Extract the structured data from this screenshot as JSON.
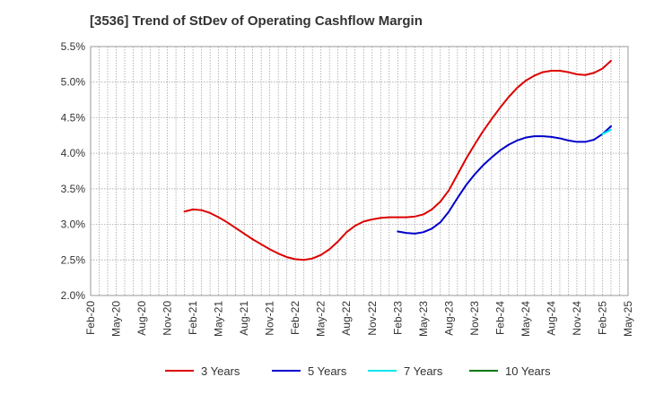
{
  "title": "[3536]  Trend of StDev of Operating Cashflow Margin",
  "chart_data": {
    "type": "line",
    "title": "[3536]  Trend of StDev of Operating Cashflow Margin",
    "xlabel": "",
    "ylabel": "",
    "x_ticks": [
      "Feb-20",
      "May-20",
      "Aug-20",
      "Nov-20",
      "Feb-21",
      "May-21",
      "Aug-21",
      "Nov-21",
      "Feb-22",
      "May-22",
      "Aug-22",
      "Nov-22",
      "Feb-23",
      "May-23",
      "Aug-23",
      "Nov-23",
      "Feb-24",
      "May-24",
      "Aug-24",
      "Nov-24",
      "Feb-25",
      "May-25"
    ],
    "y_ticks": [
      "2.0%",
      "2.5%",
      "3.0%",
      "3.5%",
      "4.0%",
      "4.5%",
      "5.0%",
      "5.5%"
    ],
    "ylim": [
      2.0,
      5.5
    ],
    "grid": true,
    "legend_position": "bottom",
    "series": [
      {
        "name": "3 Years",
        "color": "#dd0000",
        "points": [
          [
            "Jan-21",
            3.18
          ],
          [
            "Feb-21",
            3.21
          ],
          [
            "Mar-21",
            3.2
          ],
          [
            "Apr-21",
            3.16
          ],
          [
            "May-21",
            3.1
          ],
          [
            "Jun-21",
            3.03
          ],
          [
            "Jul-21",
            2.95
          ],
          [
            "Aug-21",
            2.87
          ],
          [
            "Sep-21",
            2.79
          ],
          [
            "Oct-21",
            2.72
          ],
          [
            "Nov-21",
            2.65
          ],
          [
            "Dec-21",
            2.59
          ],
          [
            "Jan-22",
            2.54
          ],
          [
            "Feb-22",
            2.51
          ],
          [
            "Mar-22",
            2.5
          ],
          [
            "Apr-22",
            2.52
          ],
          [
            "May-22",
            2.57
          ],
          [
            "Jun-22",
            2.65
          ],
          [
            "Jul-22",
            2.76
          ],
          [
            "Aug-22",
            2.89
          ],
          [
            "Sep-22",
            2.98
          ],
          [
            "Oct-22",
            3.04
          ],
          [
            "Nov-22",
            3.07
          ],
          [
            "Dec-22",
            3.09
          ],
          [
            "Jan-23",
            3.1
          ],
          [
            "Feb-23",
            3.1
          ],
          [
            "Mar-23",
            3.1
          ],
          [
            "Apr-23",
            3.11
          ],
          [
            "May-23",
            3.14
          ],
          [
            "Jun-23",
            3.21
          ],
          [
            "Jul-23",
            3.32
          ],
          [
            "Aug-23",
            3.48
          ],
          [
            "Sep-23",
            3.7
          ],
          [
            "Oct-23",
            3.92
          ],
          [
            "Nov-23",
            4.12
          ],
          [
            "Dec-23",
            4.31
          ],
          [
            "Jan-24",
            4.48
          ],
          [
            "Feb-24",
            4.64
          ],
          [
            "Mar-24",
            4.79
          ],
          [
            "Apr-24",
            4.92
          ],
          [
            "May-24",
            5.02
          ],
          [
            "Jun-24",
            5.09
          ],
          [
            "Jul-24",
            5.14
          ],
          [
            "Aug-24",
            5.16
          ],
          [
            "Sep-24",
            5.16
          ],
          [
            "Oct-24",
            5.14
          ],
          [
            "Nov-24",
            5.11
          ],
          [
            "Dec-24",
            5.1
          ],
          [
            "Jan-25",
            5.13
          ],
          [
            "Feb-25",
            5.19
          ],
          [
            "Mar-25",
            5.3
          ]
        ]
      },
      {
        "name": "5 Years",
        "color": "#0000cc",
        "points": [
          [
            "Feb-23",
            2.9
          ],
          [
            "Mar-23",
            2.88
          ],
          [
            "Apr-23",
            2.87
          ],
          [
            "May-23",
            2.89
          ],
          [
            "Jun-23",
            2.94
          ],
          [
            "Jul-23",
            3.03
          ],
          [
            "Aug-23",
            3.18
          ],
          [
            "Sep-23",
            3.37
          ],
          [
            "Oct-23",
            3.55
          ],
          [
            "Nov-23",
            3.7
          ],
          [
            "Dec-23",
            3.83
          ],
          [
            "Jan-24",
            3.94
          ],
          [
            "Feb-24",
            4.04
          ],
          [
            "Mar-24",
            4.12
          ],
          [
            "Apr-24",
            4.18
          ],
          [
            "May-24",
            4.22
          ],
          [
            "Jun-24",
            4.24
          ],
          [
            "Jul-24",
            4.24
          ],
          [
            "Aug-24",
            4.23
          ],
          [
            "Sep-24",
            4.21
          ],
          [
            "Oct-24",
            4.18
          ],
          [
            "Nov-24",
            4.16
          ],
          [
            "Dec-24",
            4.16
          ],
          [
            "Jan-25",
            4.19
          ],
          [
            "Feb-25",
            4.27
          ],
          [
            "Mar-25",
            4.38
          ]
        ]
      },
      {
        "name": "7 Years",
        "color": "#00e5ee",
        "points": [
          [
            "Feb-25",
            4.27
          ],
          [
            "Mar-25",
            4.33
          ]
        ]
      },
      {
        "name": "10 Years",
        "color": "#007700",
        "points": []
      }
    ]
  }
}
